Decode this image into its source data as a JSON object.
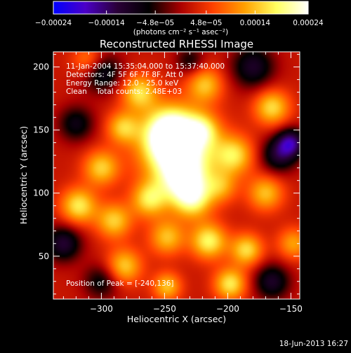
{
  "colorbar": {
    "tick_labels": [
      "−0.00024",
      "−0.00014",
      "−4.8e−05",
      "4.8e−05",
      "0.00014",
      "0.00024"
    ],
    "tick_values": [
      -0.00024,
      -0.00014,
      -4.8e-05,
      4.8e-05,
      0.00014,
      0.00024
    ],
    "range": [
      -0.00024,
      0.00024
    ],
    "unit_label": "(photons cm⁻² s⁻¹ asec⁻²)",
    "colors": [
      "#0000ff",
      "#4b00c8",
      "#2a0038",
      "#000000",
      "#aa0000",
      "#ff4000",
      "#ffa000",
      "#ffff60",
      "#ffffff"
    ]
  },
  "chart": {
    "title": "Reconstructed RHESSI Image",
    "xlabel": "Heliocentric X (arcsec)",
    "ylabel": "Heliocentric Y (arcsec)"
  },
  "annotations": {
    "time_range": "11-Jan-2004 15:35:04.000 to 15:37:40.000",
    "detectors": "Detectors: 4F 5F 6F 7F 8F, Att 0",
    "energy": "Energy Range: 12.0 - 25.0 keV",
    "clean": "Clean    Total counts: 2.48E+03",
    "peak": "Position of Peak = [-240,136]"
  },
  "footer": {
    "timestamp": "18-Jun-2013 16:27"
  },
  "chart_data": {
    "type": "heatmap",
    "title": "Reconstructed RHESSI Image",
    "xlabel": "Heliocentric X (arcsec)",
    "ylabel": "Heliocentric Y (arcsec)",
    "xlim": [
      -338,
      -143
    ],
    "ylim": [
      16,
      212
    ],
    "x_ticks": [
      -300,
      -250,
      -200,
      -150
    ],
    "y_ticks": [
      50,
      100,
      150,
      200
    ],
    "x_tick_labels": [
      "−300",
      "−250",
      "−200",
      "−150"
    ],
    "y_tick_labels": [
      "50",
      "100",
      "150",
      "200"
    ],
    "value_range": [
      -0.00024,
      0.00024
    ],
    "peak_position": [
      -240,
      136
    ],
    "sources": [
      {
        "x": -240,
        "y": 136,
        "r": 20,
        "v": 0.00024
      },
      {
        "x": -246,
        "y": 148,
        "r": 13,
        "v": 0.00017
      },
      {
        "x": -235,
        "y": 112,
        "r": 13,
        "v": 0.00015
      },
      {
        "x": -228,
        "y": 95,
        "r": 11,
        "v": 0.00015
      },
      {
        "x": -262,
        "y": 95,
        "r": 10,
        "v": 0.00014
      },
      {
        "x": -215,
        "y": 62,
        "r": 10,
        "v": 0.00016
      },
      {
        "x": -248,
        "y": 65,
        "r": 10,
        "v": 0.00012
      },
      {
        "x": -248,
        "y": 26,
        "r": 8,
        "v": 0.00012
      },
      {
        "x": -198,
        "y": 28,
        "r": 9,
        "v": 0.00015
      },
      {
        "x": -185,
        "y": 55,
        "r": 9,
        "v": 0.00014
      },
      {
        "x": -270,
        "y": 180,
        "r": 10,
        "v": 0.00014
      },
      {
        "x": -283,
        "y": 152,
        "r": 9,
        "v": 0.00012
      },
      {
        "x": -300,
        "y": 120,
        "r": 10,
        "v": 0.00013
      },
      {
        "x": -318,
        "y": 90,
        "r": 10,
        "v": 0.00015
      },
      {
        "x": -290,
        "y": 78,
        "r": 10,
        "v": 0.00013
      },
      {
        "x": -282,
        "y": 42,
        "r": 10,
        "v": 0.00013
      },
      {
        "x": -218,
        "y": 186,
        "r": 10,
        "v": 0.00012
      },
      {
        "x": -195,
        "y": 130,
        "r": 11,
        "v": 0.00014
      },
      {
        "x": -170,
        "y": 100,
        "r": 10,
        "v": 0.00012
      },
      {
        "x": -165,
        "y": 168,
        "r": 10,
        "v": 0.00014
      },
      {
        "x": -220,
        "y": 150,
        "r": 9,
        "v": 0.0001
      },
      {
        "x": -148,
        "y": 60,
        "r": 9,
        "v": 0.0001
      },
      {
        "x": -310,
        "y": 205,
        "r": 9,
        "v": 0.0001
      },
      {
        "x": -205,
        "y": 105,
        "r": 9,
        "v": 9e-05
      },
      {
        "x": -330,
        "y": 60,
        "r": 10,
        "v": -0.00013
      },
      {
        "x": -300,
        "y": 196,
        "r": 11,
        "v": -0.00012
      },
      {
        "x": -320,
        "y": 155,
        "r": 10,
        "v": -0.0001
      },
      {
        "x": -180,
        "y": 200,
        "r": 12,
        "v": -0.00012
      },
      {
        "x": -160,
        "y": 130,
        "r": 10,
        "v": -0.00012
      },
      {
        "x": -150,
        "y": 140,
        "r": 8,
        "v": -0.00016
      },
      {
        "x": -165,
        "y": 30,
        "r": 10,
        "v": -0.00012
      },
      {
        "x": -300,
        "y": 30,
        "r": 10,
        "v": -9e-05
      },
      {
        "x": -230,
        "y": 205,
        "r": 8,
        "v": -8e-05
      }
    ]
  }
}
